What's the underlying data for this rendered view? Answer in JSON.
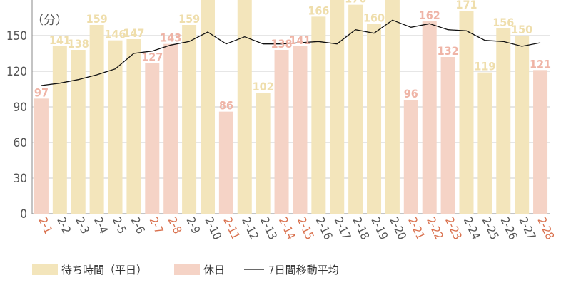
{
  "chart_data": {
    "type": "bar",
    "unit_label": "（分）",
    "ylim": [
      0,
      180
    ],
    "yticks": [
      0,
      30,
      60,
      90,
      120,
      150
    ],
    "grid": true,
    "legend_position": "bottom",
    "categories": [
      "2-1",
      "2-2",
      "2-3",
      "2-4",
      "2-5",
      "2-6",
      "2-7",
      "2-8",
      "2-9",
      "2-10",
      "2-11",
      "2-12",
      "2-13",
      "2-14",
      "2-15",
      "2-16",
      "2-17",
      "2-18",
      "2-19",
      "2-20",
      "2-21",
      "2-22",
      "2-23",
      "2-24",
      "2-25",
      "2-26",
      "2-27",
      "2-28"
    ],
    "holiday": [
      true,
      false,
      false,
      false,
      false,
      false,
      true,
      true,
      false,
      false,
      true,
      false,
      false,
      true,
      true,
      false,
      false,
      false,
      false,
      false,
      true,
      true,
      true,
      false,
      false,
      false,
      false,
      true
    ],
    "values": [
      97,
      141,
      138,
      159,
      146,
      147,
      127,
      143,
      159,
      185,
      86,
      185,
      102,
      138,
      141,
      166,
      185,
      176,
      160,
      185,
      96,
      162,
      132,
      171,
      119,
      156,
      150,
      121
    ],
    "series": [
      {
        "name": "待ち時間（平日）",
        "color": "#f3e5bb"
      },
      {
        "name": "休日",
        "color": "#f5d3c6"
      },
      {
        "name": "7日間移動平均",
        "color": "#111111",
        "values": [
          108,
          110,
          113,
          117,
          122,
          135,
          137,
          142,
          145,
          153,
          143,
          149,
          143,
          143,
          144,
          145,
          143,
          155,
          152,
          163,
          157,
          160,
          155,
          154,
          146,
          145,
          141,
          144
        ]
      }
    ],
    "colors": {
      "weekday_label": "#efdeac",
      "holiday_label": "#efb4a6",
      "holiday_tick": "#d9714e",
      "tick": "#555555"
    }
  }
}
